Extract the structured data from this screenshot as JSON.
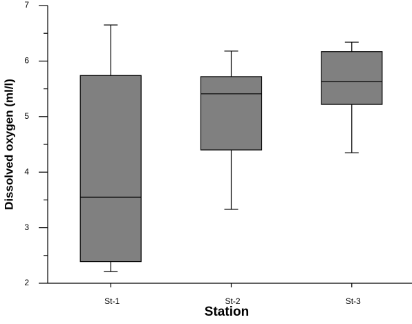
{
  "chart_data": {
    "type": "box",
    "x_label": "Station",
    "y_label": "Dissolved oxygen (ml/l)",
    "categories": [
      "St-1",
      "St-2",
      "St-3"
    ],
    "series": [
      {
        "color": "#808080",
        "min": [
          2.21,
          3.33,
          4.35
        ],
        "q1": [
          2.39,
          4.4,
          5.22
        ],
        "median": [
          3.55,
          5.41,
          5.63
        ],
        "q3": [
          5.74,
          5.72,
          6.17
        ],
        "max": [
          6.65,
          6.18,
          6.34
        ]
      }
    ],
    "ylim": [
      2,
      7
    ],
    "yticks": [
      2,
      3,
      4,
      5,
      6,
      7
    ],
    "yminorticks": [
      2.5,
      3.5,
      4.5,
      5.5,
      6.5
    ]
  }
}
